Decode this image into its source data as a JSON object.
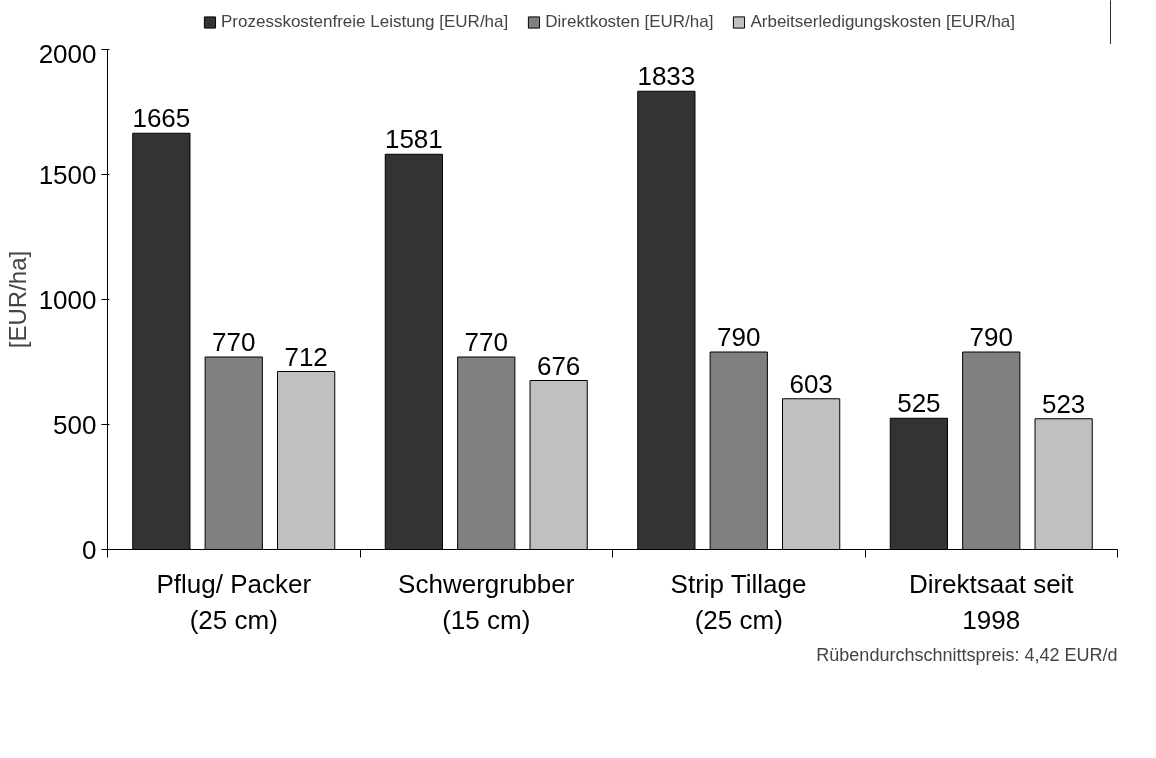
{
  "chart_data": {
    "type": "bar",
    "categories": [
      "Pflug/ Packer\n(25 cm)",
      "Schwergrubber\n(15 cm)",
      "Strip Tillage\n(25 cm)",
      "Direktsaat seit\n1998"
    ],
    "series": [
      {
        "name": "Prozesskostenfreie Leistung [EUR/ha]",
        "color": "#333333",
        "values": [
          1665,
          1581,
          1833,
          525
        ]
      },
      {
        "name": "Direktkosten [EUR/ha]",
        "color": "#808080",
        "values": [
          770,
          770,
          790,
          790
        ]
      },
      {
        "name": "Arbeitserledigungskosten [EUR/ha]",
        "color": "#c0c0c0",
        "values": [
          712,
          676,
          603,
          523
        ]
      }
    ],
    "ylabel": "[EUR/ha]",
    "ylim": [
      0,
      2000
    ],
    "yticks": [
      0,
      500,
      1000,
      1500,
      2000
    ],
    "data_labels": true,
    "grid": false,
    "legend": "top",
    "annotations": [
      "Rübendurchschnittspreis: 4,42 EUR/d"
    ]
  }
}
